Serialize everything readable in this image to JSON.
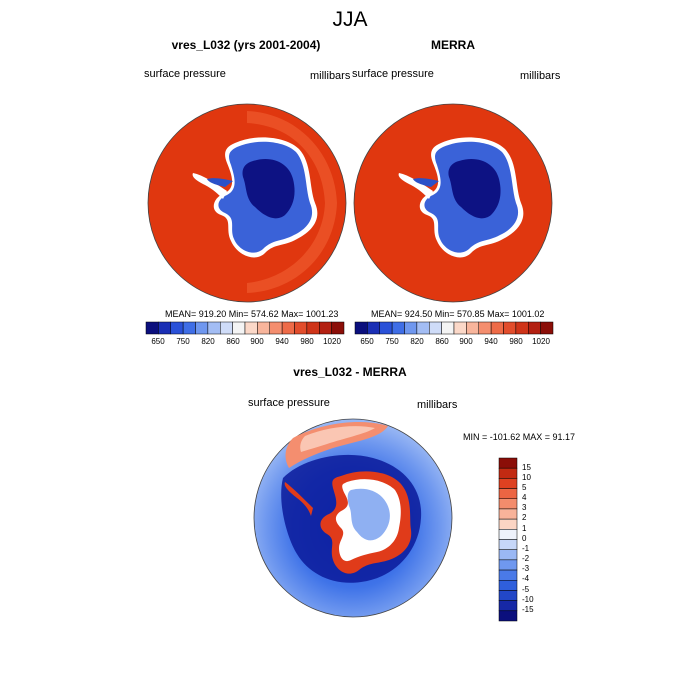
{
  "main_title": "JJA",
  "panel_left": {
    "title": "vres_L032 (yrs 2001-2004)",
    "left_label": "surface pressure",
    "right_label": "millibars",
    "stats": "MEAN= 919.20  Min= 574.62  Max= 1001.23"
  },
  "panel_right": {
    "title": "MERRA",
    "left_label": "surface pressure",
    "right_label": "millibars",
    "stats": "MEAN= 924.50  Min= 570.85  Max= 1001.02"
  },
  "panel_diff": {
    "title": "vres_L032 - MERRA",
    "left_label": "surface pressure",
    "right_label": "millibars",
    "stats": "MIN = -101.62 MAX =  91.17"
  },
  "abs_colorbar": {
    "colors": [
      "#0b0f7d",
      "#1a2fb5",
      "#2a51d8",
      "#3f6ee6",
      "#6f97ef",
      "#a3bdf4",
      "#cfdcf8",
      "#f4f4f4",
      "#fbd8c8",
      "#f8b59c",
      "#f48e6f",
      "#ee6b48",
      "#e24d2c",
      "#cf3419",
      "#b32011",
      "#8b0e08"
    ],
    "labels": [
      "650",
      "750",
      "820",
      "860",
      "900",
      "940",
      "980",
      "1020"
    ]
  },
  "diff_colorbar": {
    "colors": [
      "#0b0f7d",
      "#1628a6",
      "#2247c7",
      "#2f5fdc",
      "#4a7ae8",
      "#6f98ef",
      "#9ab8f4",
      "#c6d7f8",
      "#eef2fb",
      "#fbd5c4",
      "#f8b39a",
      "#f38c6c",
      "#ec6543",
      "#de4121",
      "#c22a12",
      "#8b0e08"
    ],
    "labels": [
      "15",
      "10",
      "5",
      "4",
      "3",
      "2",
      "1",
      "0",
      "-1",
      "-2",
      "-3",
      "-4",
      "-5",
      "-10",
      "-15"
    ]
  }
}
